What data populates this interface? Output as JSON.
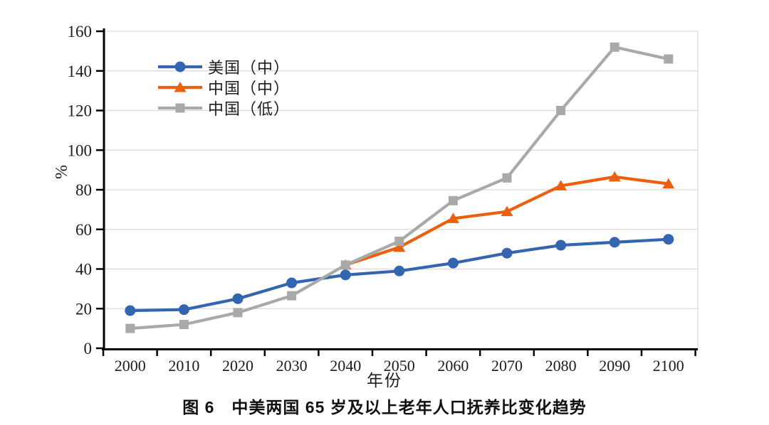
{
  "figure": {
    "caption": "图 6　中美两国 65 岁及以上老年人口抚养比变化趋势"
  },
  "chart_data": {
    "type": "line",
    "title": "图 6　中美两国 65 岁及以上老年人口抚养比变化趋势",
    "xlabel": "年份",
    "ylabel": "%",
    "x": [
      2000,
      2010,
      2020,
      2030,
      2040,
      2050,
      2060,
      2070,
      2080,
      2090,
      2100
    ],
    "ylim": [
      0,
      160
    ],
    "y_tick_step": 20,
    "grid": true,
    "grid_color": "#d9d9d9",
    "axis_color": "#000000",
    "legend_position": "top-left-inside",
    "series": [
      {
        "name": "美国（中）",
        "marker": "circle",
        "color": "#3465b0",
        "values": [
          19,
          19.5,
          25,
          33,
          37,
          39,
          43,
          48,
          52,
          53.5,
          55
        ]
      },
      {
        "name": "中国（中）",
        "marker": "triangle",
        "color": "#ec600d",
        "values": [
          null,
          null,
          null,
          null,
          42,
          51,
          65.5,
          69,
          82,
          86.5,
          83
        ]
      },
      {
        "name": "中国（低）",
        "marker": "square",
        "color": "#a9a9a9",
        "values": [
          10,
          12,
          18,
          26.5,
          42,
          54,
          74.5,
          86,
          120,
          152,
          146
        ]
      }
    ]
  }
}
